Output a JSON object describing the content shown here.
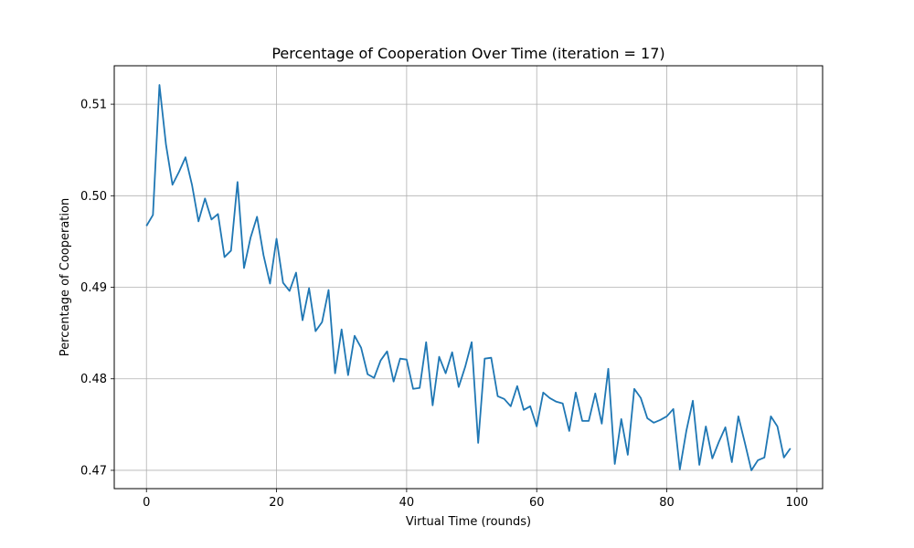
{
  "chart_data": {
    "type": "line",
    "title": "Percentage of Cooperation Over Time (iteration = 17)",
    "xlabel": "Virtual Time (rounds)",
    "ylabel": "Percentage of Cooperation",
    "xlim": [
      -4.95,
      103.95
    ],
    "ylim": [
      0.468,
      0.5142
    ],
    "xticks": [
      0,
      20,
      40,
      60,
      80,
      100
    ],
    "yticks": [
      0.47,
      0.48,
      0.49,
      0.5,
      0.51
    ],
    "xtick_labels": [
      "0",
      "20",
      "40",
      "60",
      "80",
      "100"
    ],
    "ytick_labels": [
      "0.47",
      "0.48",
      "0.49",
      "0.50",
      "0.51"
    ],
    "grid": true,
    "colors": {
      "line": "#1f77b4",
      "grid": "#b0b0b0",
      "axes": "#000000"
    },
    "series": [
      {
        "x": [
          0,
          1,
          2,
          3,
          4,
          5,
          6,
          7,
          8,
          9,
          10,
          11,
          12,
          13,
          14,
          15,
          16,
          17,
          18,
          19,
          20,
          21,
          22,
          23,
          24,
          25,
          26,
          27,
          28,
          29,
          30,
          31,
          32,
          33,
          34,
          35,
          36,
          37,
          38,
          39,
          40,
          41,
          42,
          43,
          44,
          45,
          46,
          47,
          48,
          49,
          50,
          51,
          52,
          53,
          54,
          55,
          56,
          57,
          58,
          59,
          60,
          61,
          62,
          63,
          64,
          65,
          66,
          67,
          68,
          69,
          70,
          71,
          72,
          73,
          74,
          75,
          76,
          77,
          78,
          79,
          80,
          81,
          82,
          83,
          84,
          85,
          86,
          87,
          88,
          89,
          90,
          91,
          92,
          93,
          94,
          95,
          96,
          97,
          98,
          99
        ],
        "values": [
          0.4967,
          0.4979,
          0.5121,
          0.5056,
          0.5012,
          0.5026,
          0.5042,
          0.5012,
          0.4972,
          0.4997,
          0.4974,
          0.498,
          0.4933,
          0.494,
          0.5015,
          0.4921,
          0.4954,
          0.4977,
          0.4935,
          0.4904,
          0.4953,
          0.4905,
          0.4896,
          0.4916,
          0.4864,
          0.4899,
          0.4852,
          0.4862,
          0.4897,
          0.4806,
          0.4854,
          0.4804,
          0.4847,
          0.4834,
          0.4805,
          0.4801,
          0.482,
          0.483,
          0.4797,
          0.4822,
          0.4821,
          0.4789,
          0.479,
          0.484,
          0.4771,
          0.4824,
          0.4806,
          0.4829,
          0.4791,
          0.4813,
          0.484,
          0.473,
          0.4822,
          0.4823,
          0.4781,
          0.4778,
          0.477,
          0.4792,
          0.4766,
          0.477,
          0.4748,
          0.4785,
          0.4779,
          0.4775,
          0.4773,
          0.4743,
          0.4785,
          0.4754,
          0.4754,
          0.4784,
          0.4751,
          0.4811,
          0.4707,
          0.4756,
          0.4717,
          0.4789,
          0.4779,
          0.4757,
          0.4752,
          0.4755,
          0.4759,
          0.4767,
          0.4701,
          0.4743,
          0.4776,
          0.4706,
          0.4748,
          0.4713,
          0.4731,
          0.4747,
          0.4709,
          0.4759,
          0.473,
          0.47,
          0.4711,
          0.4714,
          0.4759,
          0.4748,
          0.4714,
          0.4724
        ]
      }
    ]
  }
}
